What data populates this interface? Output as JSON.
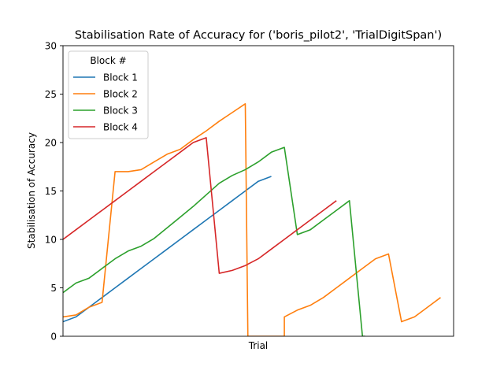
{
  "chart_data": {
    "type": "line",
    "title": "Stabilisation Rate of Accuracy for ('boris_pilot2', 'TrialDigitSpan')",
    "xlabel": "Trial",
    "ylabel": "Stabilisation of Accuracy",
    "xlim": [
      0,
      30
    ],
    "ylim": [
      0,
      30
    ],
    "yticks": [
      0,
      5,
      10,
      15,
      20,
      25,
      30
    ],
    "xticks_shown": false,
    "grid": false,
    "legend": {
      "title": "Block #",
      "placement": "upper-left"
    },
    "series": [
      {
        "name": "Block 1",
        "color": "#1f77b4",
        "x": [
          0,
          1,
          2,
          3,
          4,
          5,
          6,
          7,
          8,
          9,
          10,
          11,
          12,
          13,
          14,
          15,
          16
        ],
        "y": [
          1.5,
          2.0,
          3.0,
          4.0,
          5.0,
          6.0,
          7.0,
          8.0,
          9.0,
          10.0,
          11.0,
          12.0,
          13.0,
          14.0,
          15.0,
          16.0,
          16.5
        ]
      },
      {
        "name": "Block 2",
        "color": "#ff7f0e",
        "x": [
          0,
          1,
          2,
          3,
          4,
          5,
          6,
          7,
          8,
          9,
          10,
          11,
          12,
          13,
          14,
          14.2,
          17,
          17,
          18,
          19,
          20,
          21,
          22,
          23,
          24,
          25,
          26,
          27,
          28,
          29
        ],
        "y": [
          2.0,
          2.2,
          3.0,
          3.5,
          17.0,
          17.0,
          17.2,
          18.0,
          18.8,
          19.3,
          20.3,
          21.2,
          22.2,
          23.1,
          24.0,
          0,
          0,
          2.0,
          2.7,
          3.2,
          4.0,
          5.0,
          6.0,
          7.0,
          8.0,
          8.5,
          1.5,
          2.0,
          3.0,
          4.0
        ]
      },
      {
        "name": "Block 3",
        "color": "#2ca02c",
        "x": [
          0,
          1,
          2,
          3,
          4,
          5,
          6,
          7,
          8,
          9,
          10,
          11,
          12,
          13,
          14,
          15,
          16,
          17,
          18,
          19,
          20,
          21,
          22,
          23,
          23.2
        ],
        "y": [
          4.5,
          5.5,
          6.0,
          7.0,
          8.0,
          8.8,
          9.3,
          10.1,
          11.2,
          12.3,
          13.4,
          14.6,
          15.8,
          16.6,
          17.2,
          18.0,
          19.0,
          19.5,
          10.5,
          11.0,
          12.0,
          13.0,
          14.0,
          0,
          0
        ]
      },
      {
        "name": "Block 4",
        "color": "#d62728",
        "x": [
          0,
          1,
          2,
          3,
          4,
          5,
          6,
          7,
          8,
          9,
          10,
          11,
          12,
          13,
          14,
          15,
          16,
          17,
          18,
          19,
          20,
          21
        ],
        "y": [
          10.0,
          11.0,
          12.0,
          13.0,
          14.0,
          15.0,
          16.0,
          17.0,
          18.0,
          19.0,
          20.0,
          20.5,
          6.5,
          6.8,
          7.3,
          8.0,
          9.0,
          10.0,
          11.0,
          12.0,
          13.0,
          14.0
        ]
      }
    ]
  }
}
